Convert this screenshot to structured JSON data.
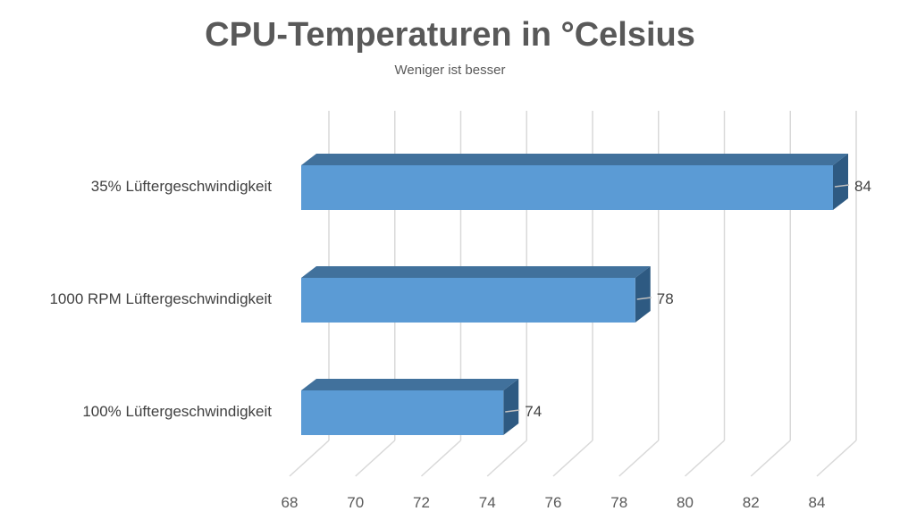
{
  "chart_data": {
    "type": "bar",
    "orientation": "horizontal",
    "style": "3d",
    "title": "CPU-Temperaturen in °Celsius",
    "subtitle": "Weniger ist besser",
    "categories": [
      "35% Lüftergeschwindigkeit",
      "1000 RPM Lüftergeschwindigkeit",
      "100% Lüftergeschwindigkeit"
    ],
    "values": [
      84,
      78,
      74
    ],
    "data_labels": [
      "84",
      "78",
      "74"
    ],
    "xlim": [
      68,
      84
    ],
    "x_ticks": [
      "68",
      "70",
      "72",
      "74",
      "76",
      "78",
      "80",
      "82",
      "84"
    ],
    "grid": true,
    "legend": "none",
    "colors": {
      "bar_front": "#5b9bd5",
      "bar_top": "#41719c",
      "bar_side": "#2e5a82",
      "grid": "#d9d9d9",
      "text": "#595959"
    }
  }
}
